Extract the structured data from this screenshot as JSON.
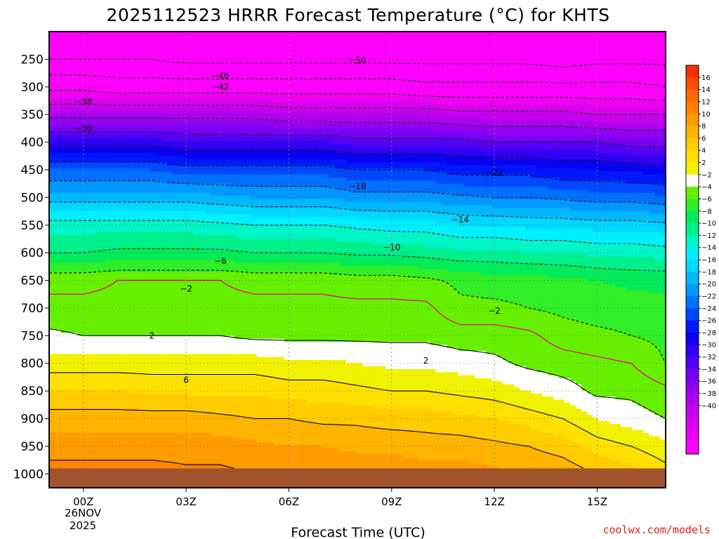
{
  "chart_data": {
    "type": "heatmap",
    "title": "2025112523 HRRR Forecast Temperature (°C) for KHTS",
    "xlabel": "Forecast Time (UTC)",
    "x_ticks": [
      {
        "hour": 0,
        "label": "00Z"
      },
      {
        "hour": 3,
        "label": "03Z"
      },
      {
        "hour": 6,
        "label": "06Z"
      },
      {
        "hour": 9,
        "label": "09Z"
      },
      {
        "hour": 12,
        "label": "12Z"
      },
      {
        "hour": 15,
        "label": "15Z"
      }
    ],
    "date_label": [
      "26NOV",
      "2025"
    ],
    "xlim": [
      -1,
      17
    ],
    "y_axis": "pressure (hPa), inverted",
    "y_ticks": [
      250,
      300,
      350,
      400,
      450,
      500,
      550,
      600,
      650,
      700,
      750,
      800,
      850,
      900,
      950,
      1000
    ],
    "ylim": [
      1025,
      200
    ],
    "surface_pressure": 990,
    "grid": true,
    "colorbar": {
      "levels": [
        -42,
        -40,
        -38,
        -36,
        -34,
        -32,
        -30,
        -28,
        -26,
        -24,
        -22,
        -20,
        -18,
        -16,
        -14,
        -12,
        -10,
        -8,
        -6,
        -4,
        -2,
        2,
        4,
        6,
        8,
        10,
        12,
        14,
        16,
        18
      ],
      "colors": [
        "#ff00ff",
        "#ee00f2",
        "#dc00f0",
        "#c800f0",
        "#b000f0",
        "#9400f2",
        "#7800f4",
        "#5400f5",
        "#3000f5",
        "#0800f0",
        "#0018ff",
        "#0048ff",
        "#0070ff",
        "#0098ff",
        "#00b8ff",
        "#00d8ff",
        "#00f0ff",
        "#00f5c8",
        "#00f08c",
        "#00ec5a",
        "#30ee28",
        "#66f000",
        "#ffffff",
        "#f2f200",
        "#ffe000",
        "#ffcc00",
        "#ffb400",
        "#ff9c00",
        "#ff8200",
        "#ff6800",
        "#ff4a00",
        "#f03000"
      ],
      "labels": [
        "16",
        "14",
        "12",
        "10",
        "8",
        "6",
        "4",
        "2",
        "−2",
        "−4",
        "−6",
        "−8",
        "−10",
        "−12",
        "−14",
        "−16",
        "−18",
        "−20",
        "−22",
        "−24",
        "−26",
        "−28",
        "−30",
        "−32",
        "−34",
        "−36",
        "−38",
        "−40"
      ]
    },
    "anchor_hours": [
      -1,
      0,
      1,
      2,
      3,
      4,
      5,
      6,
      7,
      8,
      9,
      10,
      11,
      12,
      13,
      14,
      15,
      16,
      17
    ],
    "profile_pressures": [
      200,
      250,
      300,
      350,
      400,
      450,
      500,
      550,
      600,
      650,
      700,
      750,
      800,
      850,
      900,
      950,
      1000
    ],
    "temperature_profiles": [
      [
        -55,
        -50,
        -43,
        -35,
        -27,
        -20,
        -15,
        -9,
        -6,
        -0.5,
        0.5,
        2.5,
        5,
        8,
        11,
        13,
        15
      ],
      [
        -55,
        -50,
        -43,
        -35,
        -27,
        -20,
        -15,
        -9,
        -6,
        -0.5,
        0.5,
        2,
        5,
        8,
        11,
        13,
        15
      ],
      [
        -55,
        -50,
        -44,
        -35,
        -27,
        -20,
        -15,
        -9,
        -5.5,
        0,
        0.5,
        2,
        5,
        8,
        11,
        13,
        15
      ],
      [
        -55,
        -50,
        -44,
        -35,
        -27,
        -20,
        -15,
        -9,
        -5.5,
        0,
        1,
        2,
        5,
        7.5,
        11,
        13,
        15
      ],
      [
        -55,
        -51,
        -44,
        -35,
        -28,
        -21,
        -15,
        -9,
        -5.5,
        0,
        0.5,
        2,
        5,
        7.5,
        11,
        13,
        14.5
      ],
      [
        -55,
        -51,
        -44,
        -35,
        -28,
        -21,
        -15.5,
        -9.5,
        -5.5,
        0,
        0.5,
        2,
        5,
        7.5,
        10.5,
        13,
        14.5
      ],
      [
        -55,
        -51,
        -44,
        -35,
        -28,
        -21,
        -16,
        -10,
        -6,
        -0.5,
        0.5,
        1.5,
        5,
        7.5,
        10,
        12.5,
        14
      ],
      [
        -55,
        -51,
        -44,
        -36,
        -28,
        -21,
        -16,
        -10,
        -6,
        -0.5,
        0.5,
        1.5,
        4.5,
        7,
        10,
        12,
        14
      ],
      [
        -55,
        -51,
        -44,
        -36,
        -28,
        -21,
        -16,
        -10,
        -6,
        -0.5,
        0.5,
        1.5,
        4.5,
        7,
        9.5,
        12,
        14
      ],
      [
        -55,
        -51,
        -44,
        -36,
        -29,
        -22,
        -17,
        -10.5,
        -6.5,
        -1,
        0.5,
        1.5,
        4,
        6.5,
        9.5,
        11.5,
        13.5
      ],
      [
        -55,
        -51,
        -44,
        -36,
        -29,
        -22,
        -17,
        -11,
        -6.5,
        -1,
        0.5,
        1.5,
        3.5,
        6,
        9,
        11.5,
        13.5
      ],
      [
        -55,
        -51,
        -45,
        -36,
        -29,
        -22,
        -17,
        -11,
        -7,
        -1.5,
        0.5,
        1.5,
        3.5,
        6,
        9,
        11,
        13
      ],
      [
        -55,
        -51,
        -45,
        -37,
        -29,
        -23,
        -17.5,
        -12,
        -7.5,
        -2.5,
        -1.5,
        1,
        3,
        5.5,
        8.5,
        11,
        13
      ],
      [
        -55,
        -51,
        -45,
        -37,
        -30,
        -23,
        -18,
        -12,
        -7.5,
        -3,
        -1.5,
        1,
        2.5,
        5,
        8,
        10.5,
        12.5
      ],
      [
        -55,
        -51,
        -45,
        -37,
        -30,
        -23,
        -18,
        -12.5,
        -8,
        -3,
        -2,
        0.5,
        1.5,
        4,
        7,
        10,
        12
      ],
      [
        -55,
        -52,
        -45,
        -37,
        -30,
        -24,
        -18.5,
        -12.5,
        -8,
        -3.5,
        -2.5,
        -1,
        1,
        3,
        6,
        9,
        11.5
      ],
      [
        -55,
        -51,
        -45,
        -38,
        -30,
        -24,
        -19,
        -13,
        -8.5,
        -4,
        -3,
        -1.5,
        0.5,
        1.5,
        4,
        7,
        10
      ],
      [
        -55,
        -51,
        -45,
        -38,
        -31,
        -24.5,
        -19,
        -13,
        -8.5,
        -4.5,
        -3,
        -2,
        0,
        1.5,
        3,
        6,
        9
      ],
      [
        -55,
        -51,
        -46,
        -38,
        -31,
        -25,
        -19.5,
        -13.5,
        -9,
        -4.5,
        -3.5,
        -2.5,
        -2,
        0.5,
        2,
        4.5,
        7
      ]
    ],
    "contour_levels": [
      -50,
      -46,
      -42,
      -38,
      -34,
      -30,
      -26,
      -22,
      -18,
      -14,
      -10,
      -6,
      -2,
      2,
      6,
      10,
      14
    ],
    "contour_labels": [
      {
        "text": "−50",
        "hour": 8,
        "p": 252
      },
      {
        "text": "−46",
        "hour": 4,
        "p": 280
      },
      {
        "text": "−42",
        "hour": 4,
        "p": 300
      },
      {
        "text": "−38",
        "hour": 0,
        "p": 327
      },
      {
        "text": "−30",
        "hour": 0,
        "p": 375
      },
      {
        "text": "−22",
        "hour": 12,
        "p": 455
      },
      {
        "text": "−18",
        "hour": 8,
        "p": 480
      },
      {
        "text": "−14",
        "hour": 11,
        "p": 540
      },
      {
        "text": "−10",
        "hour": 9,
        "p": 590
      },
      {
        "text": "−6",
        "hour": 4,
        "p": 615
      },
      {
        "text": "−2",
        "hour": 3,
        "p": 665
      },
      {
        "text": "−2",
        "hour": 12,
        "p": 705
      },
      {
        "text": "2",
        "hour": 2,
        "p": 750
      },
      {
        "text": "2",
        "hour": 10,
        "p": 795
      },
      {
        "text": "6",
        "hour": 3,
        "p": 830
      }
    ],
    "freezing_line_color": "#e0187a",
    "ground_color": "#a0522d"
  },
  "credit": "coolwx.com/models"
}
